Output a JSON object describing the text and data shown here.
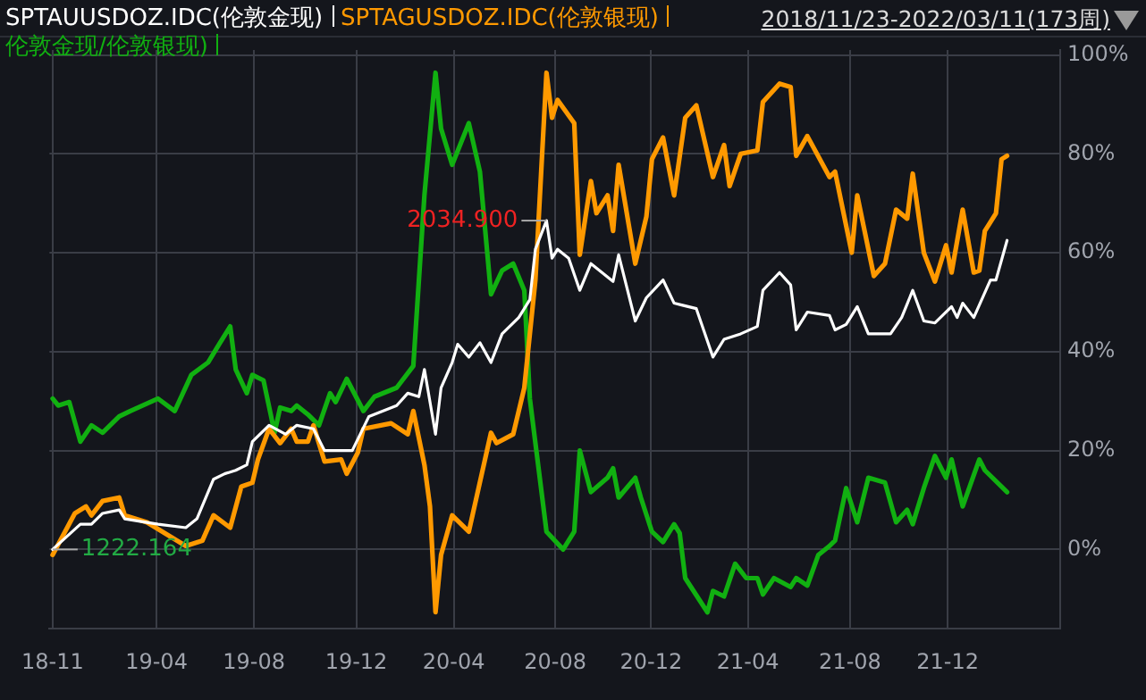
{
  "chart_data": {
    "type": "line",
    "legend": "top left",
    "grid": true,
    "marker": "none",
    "line_style": "solid",
    "xlim": [
      "2018-11-19",
      "2022-05-17"
    ],
    "xticks": [
      {
        "value": "2018-11-23",
        "label": "18-11"
      },
      {
        "value": "2019-04-03",
        "label": "19-04"
      },
      {
        "value": "2019-08-04",
        "label": "19-08"
      },
      {
        "value": "2019-12-11",
        "label": "19-12"
      },
      {
        "value": "2020-04-12",
        "label": "20-04"
      },
      {
        "value": "2020-08-18",
        "label": "20-08"
      },
      {
        "value": "2020-12-17",
        "label": "20-12"
      },
      {
        "value": "2021-04-18",
        "label": "21-04"
      },
      {
        "value": "2021-08-25",
        "label": "21-08"
      },
      {
        "value": "2021-12-26",
        "label": "21-12"
      }
    ],
    "ylim": [
      -16,
      101
    ],
    "yticks": [
      {
        "value": 0,
        "label": "0%"
      },
      {
        "value": 20,
        "label": "20%"
      },
      {
        "value": 40,
        "label": "40%"
      },
      {
        "value": 60,
        "label": "60%"
      },
      {
        "value": 80,
        "label": "80%"
      },
      {
        "value": 100,
        "label": "100%"
      }
    ],
    "annotations": [
      "2018/11/23-2022/03/11(173周)",
      {
        "text": "1222.164",
        "x": "2018-11-23",
        "y": 0
      },
      {
        "text": "2034.900",
        "x": "2020-08-07",
        "y": 66.5
      }
    ],
    "series": [
      {
        "name": "SPTAUUSDOZ.IDC(伦敦金现)",
        "color": "#ffffff",
        "x": [
          "2018-11-23",
          "2018-12-28",
          "2019-01-11",
          "2019-01-25",
          "2019-02-15",
          "2019-02-22",
          "2019-04-05",
          "2019-05-10",
          "2019-05-24",
          "2019-06-14",
          "2019-06-28",
          "2019-07-12",
          "2019-07-26",
          "2019-08-02",
          "2019-08-23",
          "2019-09-13",
          "2019-09-27",
          "2019-10-18",
          "2019-11-01",
          "2019-12-06",
          "2019-12-27",
          "2020-01-31",
          "2020-02-14",
          "2020-02-28",
          "2020-03-06",
          "2020-03-20",
          "2020-03-27",
          "2020-04-10",
          "2020-04-17",
          "2020-05-01",
          "2020-05-15",
          "2020-05-29",
          "2020-06-12",
          "2020-07-03",
          "2020-07-17",
          "2020-07-24",
          "2020-08-07",
          "2020-08-14",
          "2020-08-21",
          "2020-09-04",
          "2020-09-18",
          "2020-10-02",
          "2020-10-30",
          "2020-11-06",
          "2020-11-27",
          "2020-12-11",
          "2021-01-01",
          "2021-01-15",
          "2021-02-12",
          "2021-03-05",
          "2021-03-19",
          "2021-04-09",
          "2021-04-30",
          "2021-05-07",
          "2021-05-28",
          "2021-06-11",
          "2021-06-18",
          "2021-07-02",
          "2021-07-30",
          "2021-08-06",
          "2021-08-20",
          "2021-09-03",
          "2021-09-17",
          "2021-10-15",
          "2021-10-29",
          "2021-11-12",
          "2021-11-26",
          "2021-12-10",
          "2021-12-31",
          "2022-01-07",
          "2022-01-14",
          "2022-01-28",
          "2022-02-18",
          "2022-02-25",
          "2022-03-11"
        ],
        "values": [
          0,
          5.1,
          5.1,
          7.3,
          8,
          6.2,
          5.1,
          4.4,
          6.2,
          14.2,
          15.3,
          16,
          17.1,
          21.8,
          25.1,
          23.3,
          25.1,
          24.4,
          20,
          20,
          26.9,
          29.1,
          31.6,
          30.9,
          36.4,
          23.3,
          32.7,
          37.8,
          41.5,
          38.9,
          41.8,
          37.8,
          43.6,
          46.9,
          50.5,
          60.7,
          66.5,
          58.9,
          60.7,
          58.9,
          52.4,
          57.8,
          54.2,
          59.6,
          46.2,
          50.9,
          54.5,
          49.8,
          48.7,
          38.9,
          42.5,
          43.6,
          45.1,
          52.4,
          56,
          53.5,
          44.4,
          48,
          47.3,
          44.4,
          45.5,
          49.1,
          43.6,
          43.6,
          46.9,
          52.4,
          46.2,
          45.8,
          49.1,
          46.9,
          49.8,
          46.9,
          54.5,
          54.5,
          62.5
        ]
      },
      {
        "name": "SPTAGUSDOZ.IDC(伦敦银现)",
        "color": "#ff9900",
        "x": [
          "2018-11-23",
          "2018-12-21",
          "2019-01-04",
          "2019-01-11",
          "2019-01-25",
          "2019-02-15",
          "2019-02-22",
          "2019-03-22",
          "2019-05-10",
          "2019-05-31",
          "2019-06-14",
          "2019-07-05",
          "2019-07-19",
          "2019-08-02",
          "2019-08-09",
          "2019-08-23",
          "2019-09-06",
          "2019-09-20",
          "2019-09-27",
          "2019-10-11",
          "2019-10-18",
          "2019-11-01",
          "2019-11-22",
          "2019-11-29",
          "2019-12-13",
          "2019-12-20",
          "2020-01-24",
          "2020-02-14",
          "2020-02-21",
          "2020-03-06",
          "2020-03-13",
          "2020-03-20",
          "2020-03-27",
          "2020-04-10",
          "2020-05-01",
          "2020-05-29",
          "2020-06-05",
          "2020-06-26",
          "2020-07-10",
          "2020-07-24",
          "2020-08-07",
          "2020-08-14",
          "2020-08-21",
          "2020-09-11",
          "2020-09-18",
          "2020-10-02",
          "2020-10-09",
          "2020-10-23",
          "2020-10-30",
          "2020-11-06",
          "2020-11-27",
          "2020-12-11",
          "2020-12-18",
          "2021-01-01",
          "2021-01-15",
          "2021-01-29",
          "2021-02-12",
          "2021-03-05",
          "2021-03-19",
          "2021-03-26",
          "2021-04-09",
          "2021-04-30",
          "2021-05-07",
          "2021-05-28",
          "2021-06-11",
          "2021-06-18",
          "2021-07-02",
          "2021-07-30",
          "2021-08-06",
          "2021-08-27",
          "2021-09-03",
          "2021-09-24",
          "2021-10-08",
          "2021-10-22",
          "2021-11-05",
          "2021-11-12",
          "2021-11-26",
          "2021-12-10",
          "2021-12-24",
          "2021-12-31",
          "2022-01-14",
          "2022-01-28",
          "2022-02-04",
          "2022-02-11",
          "2022-02-25",
          "2022-03-04",
          "2022-03-11"
        ],
        "values": [
          -1.1,
          7.3,
          8.7,
          6.9,
          9.8,
          10.5,
          6.9,
          5.5,
          0.7,
          1.8,
          6.9,
          4.4,
          12.7,
          13.5,
          18.2,
          24.4,
          21.5,
          24.4,
          21.8,
          21.8,
          25.1,
          17.8,
          18.2,
          15.3,
          19.6,
          24.4,
          25.5,
          23.3,
          28,
          17.1,
          8.7,
          -12.7,
          -1.1,
          6.9,
          3.6,
          23.6,
          21.5,
          23.3,
          32.7,
          54.5,
          96.4,
          87.3,
          90.9,
          86.2,
          59.6,
          74.5,
          68,
          71.6,
          64.4,
          77.8,
          57.8,
          67.3,
          78.9,
          83.3,
          71.6,
          87.3,
          89.8,
          75.3,
          81.8,
          73.5,
          80,
          80.7,
          90.5,
          94.2,
          93.5,
          79.6,
          83.6,
          75.3,
          76.4,
          60,
          71.6,
          55.3,
          57.8,
          68.7,
          66.9,
          76,
          60,
          54.2,
          61.5,
          56,
          68.7,
          56,
          56.4,
          64.4,
          68,
          78.9,
          79.6
        ]
      },
      {
        "name": "伦敦金现/伦敦银现)",
        "color": "#11b011",
        "x": [
          "2018-11-23",
          "2018-11-30",
          "2018-12-14",
          "2018-12-28",
          "2019-01-11",
          "2019-01-25",
          "2019-02-15",
          "2019-03-01",
          "2019-04-05",
          "2019-04-26",
          "2019-05-17",
          "2019-06-07",
          "2019-06-21",
          "2019-07-05",
          "2019-07-12",
          "2019-07-26",
          "2019-08-02",
          "2019-08-16",
          "2019-08-30",
          "2019-09-06",
          "2019-09-20",
          "2019-09-27",
          "2019-10-11",
          "2019-10-25",
          "2019-11-08",
          "2019-11-15",
          "2019-11-29",
          "2019-12-20",
          "2020-01-03",
          "2020-01-31",
          "2020-02-21",
          "2020-03-06",
          "2020-03-20",
          "2020-03-27",
          "2020-04-10",
          "2020-05-01",
          "2020-05-15",
          "2020-05-29",
          "2020-06-12",
          "2020-06-26",
          "2020-07-10",
          "2020-07-17",
          "2020-08-07",
          "2020-08-28",
          "2020-09-11",
          "2020-09-18",
          "2020-10-02",
          "2020-10-23",
          "2020-10-30",
          "2020-11-06",
          "2020-11-27",
          "2020-12-04",
          "2020-12-18",
          "2021-01-01",
          "2021-01-15",
          "2021-01-22",
          "2021-01-29",
          "2021-02-26",
          "2021-03-05",
          "2021-03-19",
          "2021-04-02",
          "2021-04-16",
          "2021-04-30",
          "2021-05-07",
          "2021-05-21",
          "2021-06-11",
          "2021-06-18",
          "2021-07-02",
          "2021-07-16",
          "2021-07-30",
          "2021-08-06",
          "2021-08-20",
          "2021-09-03",
          "2021-09-17",
          "2021-10-08",
          "2021-10-22",
          "2021-11-05",
          "2021-11-12",
          "2021-11-26",
          "2021-12-10",
          "2021-12-24",
          "2021-12-31",
          "2022-01-14",
          "2022-02-04",
          "2022-02-11",
          "2022-03-11"
        ],
        "values": [
          30.5,
          29.1,
          29.8,
          21.8,
          25.1,
          23.6,
          26.9,
          28,
          30.5,
          28,
          35.3,
          37.8,
          41.5,
          45.1,
          36.4,
          31.6,
          35.3,
          34.2,
          23.6,
          28.7,
          28,
          29.1,
          27.3,
          25.1,
          31.6,
          29.8,
          34.5,
          28,
          30.9,
          32.7,
          37.1,
          71.6,
          96.4,
          85.1,
          77.8,
          86.2,
          76.4,
          51.6,
          56.4,
          57.8,
          52.4,
          30.5,
          3.6,
          0,
          3.6,
          20,
          11.6,
          14.5,
          16.4,
          10.5,
          14.5,
          10.5,
          3.6,
          1.5,
          5.1,
          3.3,
          -5.8,
          -12.7,
          -8.4,
          -9.5,
          -2.9,
          -5.8,
          -5.8,
          -9.1,
          -5.8,
          -7.6,
          -5.8,
          -7.3,
          -1.1,
          0.7,
          1.8,
          12.4,
          5.5,
          14.5,
          13.5,
          5.5,
          8,
          5.1,
          12.4,
          18.9,
          14.5,
          18.2,
          8.7,
          18.2,
          16,
          11.6
        ]
      }
    ]
  }
}
